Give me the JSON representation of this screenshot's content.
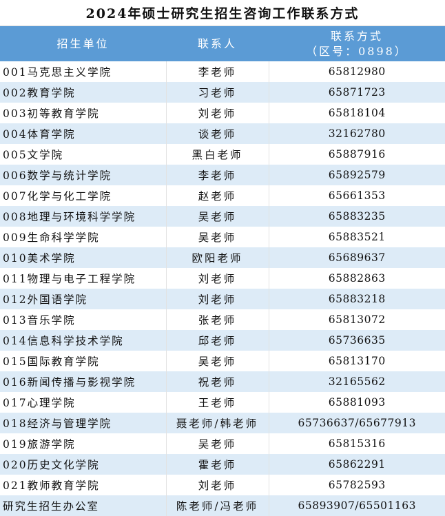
{
  "title": "2024年硕士研究生招生咨询工作联系方式",
  "header": {
    "unit": "招生单位",
    "contact": "联系人",
    "phone_line1": "联系方式",
    "phone_line2": "（区号：0898）"
  },
  "colors": {
    "header_bg": "#5b9bd5",
    "alt_row_bg": "#ddebf7"
  },
  "rows": [
    {
      "unit": "001马克思主义学院",
      "contact": "李老师",
      "phone": "65812980"
    },
    {
      "unit": "002教育学院",
      "contact": "习老师",
      "phone": "65871723"
    },
    {
      "unit": "003初等教育学院",
      "contact": "刘老师",
      "phone": "65818104"
    },
    {
      "unit": "004体育学院",
      "contact": "谈老师",
      "phone": "32162780"
    },
    {
      "unit": "005文学院",
      "contact": "黑白老师",
      "phone": "65887916"
    },
    {
      "unit": "006数学与统计学院",
      "contact": "李老师",
      "phone": "65892579"
    },
    {
      "unit": "007化学与化工学院",
      "contact": "赵老师",
      "phone": "65661353"
    },
    {
      "unit": "008地理与环境科学学院",
      "contact": "吴老师",
      "phone": "65883235"
    },
    {
      "unit": "009生命科学学院",
      "contact": "吴老师",
      "phone": "65883521"
    },
    {
      "unit": "010美术学院",
      "contact": "欧阳老师",
      "phone": "65689637"
    },
    {
      "unit": "011物理与电子工程学院",
      "contact": "刘老师",
      "phone": "65882863"
    },
    {
      "unit": "012外国语学院",
      "contact": "刘老师",
      "phone": "65883218"
    },
    {
      "unit": "013音乐学院",
      "contact": "张老师",
      "phone": "65813072"
    },
    {
      "unit": "014信息科学技术学院",
      "contact": "邱老师",
      "phone": "65736635"
    },
    {
      "unit": "015国际教育学院",
      "contact": "吴老师",
      "phone": "65813170"
    },
    {
      "unit": "016新闻传播与影视学院",
      "contact": "祝老师",
      "phone": "32165562"
    },
    {
      "unit": "017心理学院",
      "contact": "王老师",
      "phone": "65881093"
    },
    {
      "unit": "018经济与管理学院",
      "contact": "聂老师/韩老师",
      "phone": "65736637/65677913"
    },
    {
      "unit": "019旅游学院",
      "contact": "吴老师",
      "phone": "65815316"
    },
    {
      "unit": "020历史文化学院",
      "contact": "霍老师",
      "phone": "65862291"
    },
    {
      "unit": "021教师教育学院",
      "contact": "刘老师",
      "phone": "65782593"
    },
    {
      "unit": "研究生招生办公室",
      "contact": "陈老师/冯老师",
      "phone": "65893907/65501163"
    }
  ]
}
